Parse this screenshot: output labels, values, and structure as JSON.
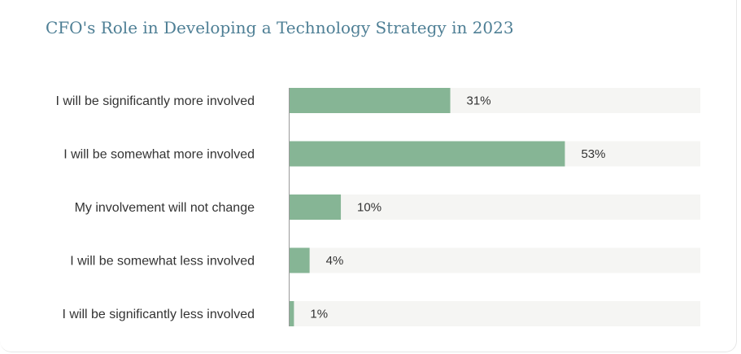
{
  "chart_data": {
    "type": "bar",
    "orientation": "horizontal",
    "title": "CFO's Role in Developing a Technology Strategy in 2023",
    "categories": [
      "I will be significantly more involved",
      "I will be somewhat more involved",
      "My involvement will not change",
      "I will be somewhat less involved",
      "I will be significantly less involved"
    ],
    "values": [
      31,
      53,
      10,
      4,
      1
    ],
    "value_labels": [
      "31%",
      "53%",
      "10%",
      "4%",
      "1%"
    ],
    "unit": "%",
    "xlim": [
      0,
      79
    ],
    "xlabel": "",
    "ylabel": "",
    "colors": {
      "bar": "#86b595",
      "track": "#f5f5f3",
      "axis": "#9a9a9a",
      "title": "#4e7f95",
      "text": "#333333"
    }
  }
}
